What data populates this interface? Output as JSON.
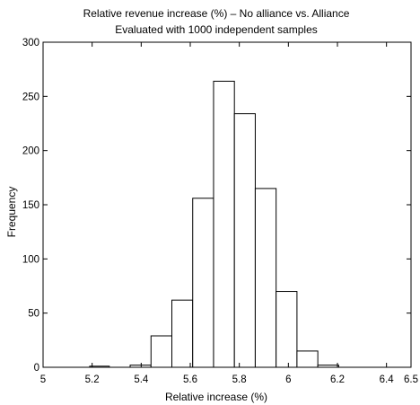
{
  "chart_data": {
    "type": "bar",
    "title": "Relative revenue increase (%) – No alliance vs. Alliance",
    "subtitle": "Evaluated with 1000 independent samples",
    "xlabel": "Relative increase (%)",
    "ylabel": "Frequency",
    "xlim": [
      5,
      6.5
    ],
    "ylim": [
      0,
      300
    ],
    "xticks": [
      "5",
      "5.2",
      "5.4",
      "5.6",
      "5.8",
      "6",
      "6.2",
      "6.4",
      "6.5"
    ],
    "xtick_values": [
      5,
      5.2,
      5.4,
      5.6,
      5.8,
      6,
      6.2,
      6.4,
      6.5
    ],
    "yticks": [
      "0",
      "50",
      "100",
      "150",
      "200",
      "250",
      "300"
    ],
    "ytick_values": [
      0,
      50,
      100,
      150,
      200,
      250,
      300
    ],
    "bin_edges": [
      5.19,
      5.27,
      5.355,
      5.44,
      5.525,
      5.61,
      5.695,
      5.78,
      5.865,
      5.95,
      6.035,
      6.12,
      6.205,
      6.29
    ],
    "values": [
      1,
      0,
      2,
      29,
      62,
      156,
      264,
      234,
      165,
      70,
      15,
      2,
      0
    ],
    "grid": false,
    "legend": "none"
  }
}
